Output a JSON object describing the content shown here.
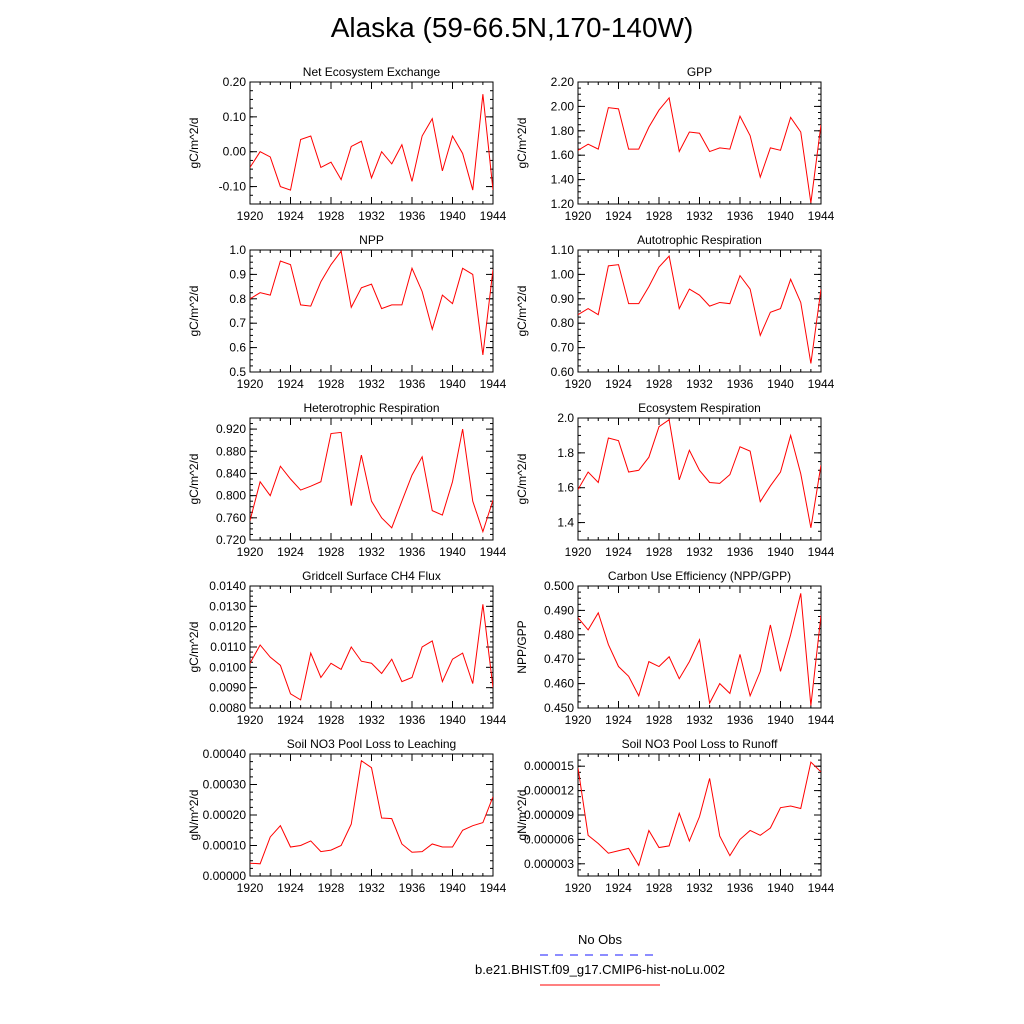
{
  "figure_title": "Alaska (59-66.5N,170-140W)",
  "colors": {
    "line": "#ff0000",
    "obs_line": "#1a1aff",
    "axis": "#000000",
    "background": "#ffffff"
  },
  "legend": {
    "obs_label": "No Obs",
    "obs_style": "dashed",
    "model_label": "b.e21.BHIST.f09_g17.CMIP6-hist-noLu.002",
    "model_style": "solid"
  },
  "chart_data": [
    {
      "type": "line",
      "title": "Net Ecosystem Exchange",
      "ylabel": "gC/m^2/d",
      "xlim": [
        1920,
        1944
      ],
      "ylim": [
        -0.15,
        0.2
      ],
      "yticks": [
        -0.1,
        0.0,
        0.1,
        0.2
      ],
      "ytick_labels": [
        "-0.10",
        "0.00",
        "0.10",
        "0.20"
      ],
      "xticks": [
        1920,
        1924,
        1928,
        1932,
        1936,
        1940,
        1944
      ],
      "x": [
        1920,
        1921,
        1922,
        1923,
        1924,
        1925,
        1926,
        1927,
        1928,
        1929,
        1930,
        1931,
        1932,
        1933,
        1934,
        1935,
        1936,
        1937,
        1938,
        1939,
        1940,
        1941,
        1942,
        1943,
        1944
      ],
      "series": [
        {
          "values": [
            -0.045,
            0.0,
            -0.015,
            -0.1,
            -0.11,
            0.035,
            0.045,
            -0.045,
            -0.03,
            -0.08,
            0.015,
            0.03,
            -0.075,
            0.0,
            -0.035,
            0.02,
            -0.085,
            0.045,
            0.095,
            -0.055,
            0.045,
            -0.005,
            -0.11,
            0.165,
            -0.11
          ]
        }
      ]
    },
    {
      "type": "line",
      "title": "GPP",
      "ylabel": "gC/m^2/d",
      "xlim": [
        1920,
        1944
      ],
      "ylim": [
        1.2,
        2.2
      ],
      "yticks": [
        1.2,
        1.4,
        1.6,
        1.8,
        2.0,
        2.2
      ],
      "ytick_labels": [
        "1.20",
        "1.40",
        "1.60",
        "1.80",
        "2.00",
        "2.20"
      ],
      "xticks": [
        1920,
        1924,
        1928,
        1932,
        1936,
        1940,
        1944
      ],
      "x": [
        1920,
        1921,
        1922,
        1923,
        1924,
        1925,
        1926,
        1927,
        1928,
        1929,
        1930,
        1931,
        1932,
        1933,
        1934,
        1935,
        1936,
        1937,
        1938,
        1939,
        1940,
        1941,
        1942,
        1943,
        1944
      ],
      "series": [
        {
          "values": [
            1.64,
            1.69,
            1.65,
            1.99,
            1.98,
            1.65,
            1.65,
            1.83,
            1.97,
            2.07,
            1.63,
            1.79,
            1.78,
            1.63,
            1.66,
            1.65,
            1.92,
            1.76,
            1.42,
            1.66,
            1.64,
            1.91,
            1.79,
            1.21,
            1.85
          ]
        }
      ]
    },
    {
      "type": "line",
      "title": "NPP",
      "ylabel": "gC/m^2/d",
      "xlim": [
        1920,
        1944
      ],
      "ylim": [
        0.5,
        1.0
      ],
      "yticks": [
        0.5,
        0.6,
        0.7,
        0.8,
        0.9,
        1.0
      ],
      "ytick_labels": [
        "0.5",
        "0.6",
        "0.7",
        "0.8",
        "0.9",
        "1.0"
      ],
      "xticks": [
        1920,
        1924,
        1928,
        1932,
        1936,
        1940,
        1944
      ],
      "x": [
        1920,
        1921,
        1922,
        1923,
        1924,
        1925,
        1926,
        1927,
        1928,
        1929,
        1930,
        1931,
        1932,
        1933,
        1934,
        1935,
        1936,
        1937,
        1938,
        1939,
        1940,
        1941,
        1942,
        1943,
        1944
      ],
      "series": [
        {
          "values": [
            0.8,
            0.825,
            0.815,
            0.955,
            0.94,
            0.775,
            0.77,
            0.87,
            0.94,
            0.995,
            0.765,
            0.845,
            0.86,
            0.76,
            0.775,
            0.775,
            0.925,
            0.83,
            0.675,
            0.815,
            0.78,
            0.925,
            0.9,
            0.57,
            0.92
          ]
        }
      ]
    },
    {
      "type": "line",
      "title": "Autotrophic Respiration",
      "ylabel": "gC/m^2/d",
      "xlim": [
        1920,
        1944
      ],
      "ylim": [
        0.6,
        1.1
      ],
      "yticks": [
        0.6,
        0.7,
        0.8,
        0.9,
        1.0,
        1.1
      ],
      "ytick_labels": [
        "0.60",
        "0.70",
        "0.80",
        "0.90",
        "1.00",
        "1.10"
      ],
      "xticks": [
        1920,
        1924,
        1928,
        1932,
        1936,
        1940,
        1944
      ],
      "x": [
        1920,
        1921,
        1922,
        1923,
        1924,
        1925,
        1926,
        1927,
        1928,
        1929,
        1930,
        1931,
        1932,
        1933,
        1934,
        1935,
        1936,
        1937,
        1938,
        1939,
        1940,
        1941,
        1942,
        1943,
        1944
      ],
      "series": [
        {
          "values": [
            0.835,
            0.86,
            0.835,
            1.035,
            1.04,
            0.88,
            0.88,
            0.95,
            1.03,
            1.075,
            0.86,
            0.94,
            0.915,
            0.87,
            0.885,
            0.88,
            0.995,
            0.94,
            0.75,
            0.845,
            0.86,
            0.98,
            0.885,
            0.635,
            0.94
          ]
        }
      ]
    },
    {
      "type": "line",
      "title": "Heterotrophic Respiration",
      "ylabel": "gC/m^2/d",
      "xlim": [
        1920,
        1944
      ],
      "ylim": [
        0.72,
        0.94
      ],
      "yticks": [
        0.72,
        0.76,
        0.8,
        0.84,
        0.88,
        0.92
      ],
      "ytick_labels": [
        "0.720",
        "0.760",
        "0.800",
        "0.840",
        "0.880",
        "0.920"
      ],
      "xticks": [
        1920,
        1924,
        1928,
        1932,
        1936,
        1940,
        1944
      ],
      "x": [
        1920,
        1921,
        1922,
        1923,
        1924,
        1925,
        1926,
        1927,
        1928,
        1929,
        1930,
        1931,
        1932,
        1933,
        1934,
        1935,
        1936,
        1937,
        1938,
        1939,
        1940,
        1941,
        1942,
        1943,
        1944
      ],
      "series": [
        {
          "values": [
            0.755,
            0.825,
            0.8,
            0.853,
            0.83,
            0.81,
            0.817,
            0.825,
            0.912,
            0.914,
            0.782,
            0.873,
            0.79,
            0.76,
            0.742,
            0.79,
            0.837,
            0.87,
            0.773,
            0.765,
            0.825,
            0.92,
            0.79,
            0.735,
            0.792
          ]
        }
      ]
    },
    {
      "type": "line",
      "title": "Ecosystem Respiration",
      "ylabel": "gC/m^2/d",
      "xlim": [
        1920,
        1944
      ],
      "ylim": [
        1.3,
        2.0
      ],
      "yticks": [
        1.4,
        1.6,
        1.8,
        2.0
      ],
      "ytick_labels": [
        "1.4",
        "1.6",
        "1.8",
        "2.0"
      ],
      "xticks": [
        1920,
        1924,
        1928,
        1932,
        1936,
        1940,
        1944
      ],
      "x": [
        1920,
        1921,
        1922,
        1923,
        1924,
        1925,
        1926,
        1927,
        1928,
        1929,
        1930,
        1931,
        1932,
        1933,
        1934,
        1935,
        1936,
        1937,
        1938,
        1939,
        1940,
        1941,
        1942,
        1943,
        1944
      ],
      "series": [
        {
          "values": [
            1.59,
            1.69,
            1.63,
            1.885,
            1.87,
            1.69,
            1.7,
            1.775,
            1.95,
            1.99,
            1.645,
            1.815,
            1.7,
            1.63,
            1.625,
            1.675,
            1.835,
            1.81,
            1.52,
            1.61,
            1.69,
            1.9,
            1.68,
            1.37,
            1.73
          ]
        }
      ]
    },
    {
      "type": "line",
      "title": "Gridcell Surface CH4 Flux",
      "ylabel": "gC/m^2/d",
      "xlim": [
        1920,
        1944
      ],
      "ylim": [
        0.008,
        0.014
      ],
      "yticks": [
        0.008,
        0.009,
        0.01,
        0.011,
        0.012,
        0.013,
        0.014
      ],
      "ytick_labels": [
        "0.0080",
        "0.0090",
        "0.0100",
        "0.0110",
        "0.0120",
        "0.0130",
        "0.0140"
      ],
      "xticks": [
        1920,
        1924,
        1928,
        1932,
        1936,
        1940,
        1944
      ],
      "x": [
        1920,
        1921,
        1922,
        1923,
        1924,
        1925,
        1926,
        1927,
        1928,
        1929,
        1930,
        1931,
        1932,
        1933,
        1934,
        1935,
        1936,
        1937,
        1938,
        1939,
        1940,
        1941,
        1942,
        1943,
        1944
      ],
      "series": [
        {
          "values": [
            0.0102,
            0.0111,
            0.0105,
            0.0101,
            0.0087,
            0.0084,
            0.0107,
            0.0095,
            0.0102,
            0.0099,
            0.011,
            0.0103,
            0.0102,
            0.0097,
            0.0104,
            0.0093,
            0.0095,
            0.011,
            0.0113,
            0.0093,
            0.0104,
            0.0107,
            0.0092,
            0.0131,
            0.009
          ]
        }
      ]
    },
    {
      "type": "line",
      "title": "Carbon Use Efficiency (NPP/GPP)",
      "ylabel": "NPP/GPP",
      "xlim": [
        1920,
        1944
      ],
      "ylim": [
        0.45,
        0.5
      ],
      "yticks": [
        0.45,
        0.46,
        0.47,
        0.48,
        0.49,
        0.5
      ],
      "ytick_labels": [
        "0.450",
        "0.460",
        "0.470",
        "0.480",
        "0.490",
        "0.500"
      ],
      "xticks": [
        1920,
        1924,
        1928,
        1932,
        1936,
        1940,
        1944
      ],
      "x": [
        1920,
        1921,
        1922,
        1923,
        1924,
        1925,
        1926,
        1927,
        1928,
        1929,
        1930,
        1931,
        1932,
        1933,
        1934,
        1935,
        1936,
        1937,
        1938,
        1939,
        1940,
        1941,
        1942,
        1943,
        1944
      ],
      "series": [
        {
          "values": [
            0.487,
            0.482,
            0.489,
            0.476,
            0.467,
            0.463,
            0.455,
            0.469,
            0.467,
            0.471,
            0.462,
            0.469,
            0.478,
            0.452,
            0.46,
            0.456,
            0.472,
            0.455,
            0.465,
            0.484,
            0.465,
            0.48,
            0.497,
            0.451,
            0.488
          ]
        }
      ]
    },
    {
      "type": "line",
      "title": "Soil NO3 Pool Loss to Leaching",
      "ylabel": "gN/m^2/d",
      "xlim": [
        1920,
        1944
      ],
      "ylim": [
        0.0,
        0.0004
      ],
      "yticks": [
        0.0,
        0.0001,
        0.0002,
        0.0003,
        0.0004
      ],
      "ytick_labels": [
        "0.00000",
        "0.00010",
        "0.00020",
        "0.00030",
        "0.00040"
      ],
      "xticks": [
        1920,
        1924,
        1928,
        1932,
        1936,
        1940,
        1944
      ],
      "x": [
        1920,
        1921,
        1922,
        1923,
        1924,
        1925,
        1926,
        1927,
        1928,
        1929,
        1930,
        1931,
        1932,
        1933,
        1934,
        1935,
        1936,
        1937,
        1938,
        1939,
        1940,
        1941,
        1942,
        1943,
        1944
      ],
      "series": [
        {
          "values": [
            4.2e-05,
            4e-05,
            0.000128,
            0.000165,
            9.5e-05,
            0.0001,
            0.000115,
            8e-05,
            8.5e-05,
            0.0001,
            0.00017,
            0.000378,
            0.000355,
            0.00019,
            0.000188,
            0.000105,
            7.8e-05,
            8e-05,
            0.000105,
            9.5e-05,
            9.5e-05,
            0.00015,
            0.000165,
            0.000175,
            0.00026
          ]
        }
      ]
    },
    {
      "type": "line",
      "title": "Soil NO3 Pool Loss to Runoff",
      "ylabel": "gN/m^2/d",
      "xlim": [
        1920,
        1944
      ],
      "ylim": [
        1.5e-06,
        1.65e-05
      ],
      "yticks": [
        3e-06,
        6e-06,
        9e-06,
        1.2e-05,
        1.5e-05
      ],
      "ytick_labels": [
        "0.000003",
        "0.000006",
        "0.000009",
        "0.000012",
        "0.000015"
      ],
      "xticks": [
        1920,
        1924,
        1928,
        1932,
        1936,
        1940,
        1944
      ],
      "x": [
        1920,
        1921,
        1922,
        1923,
        1924,
        1925,
        1926,
        1927,
        1928,
        1929,
        1930,
        1931,
        1932,
        1933,
        1934,
        1935,
        1936,
        1937,
        1938,
        1939,
        1940,
        1941,
        1942,
        1943,
        1944
      ],
      "series": [
        {
          "values": [
            1.48e-05,
            6.5e-06,
            5.5e-06,
            4.3e-06,
            4.6e-06,
            4.9e-06,
            2.8e-06,
            7.1e-06,
            5e-06,
            5.2e-06,
            9.2e-06,
            5.8e-06,
            8.8e-06,
            1.35e-05,
            6.4e-06,
            4e-06,
            6e-06,
            7.1e-06,
            6.5e-06,
            7.4e-06,
            9.9e-06,
            1.01e-05,
            9.8e-06,
            1.55e-05,
            1.43e-05
          ]
        }
      ]
    }
  ]
}
